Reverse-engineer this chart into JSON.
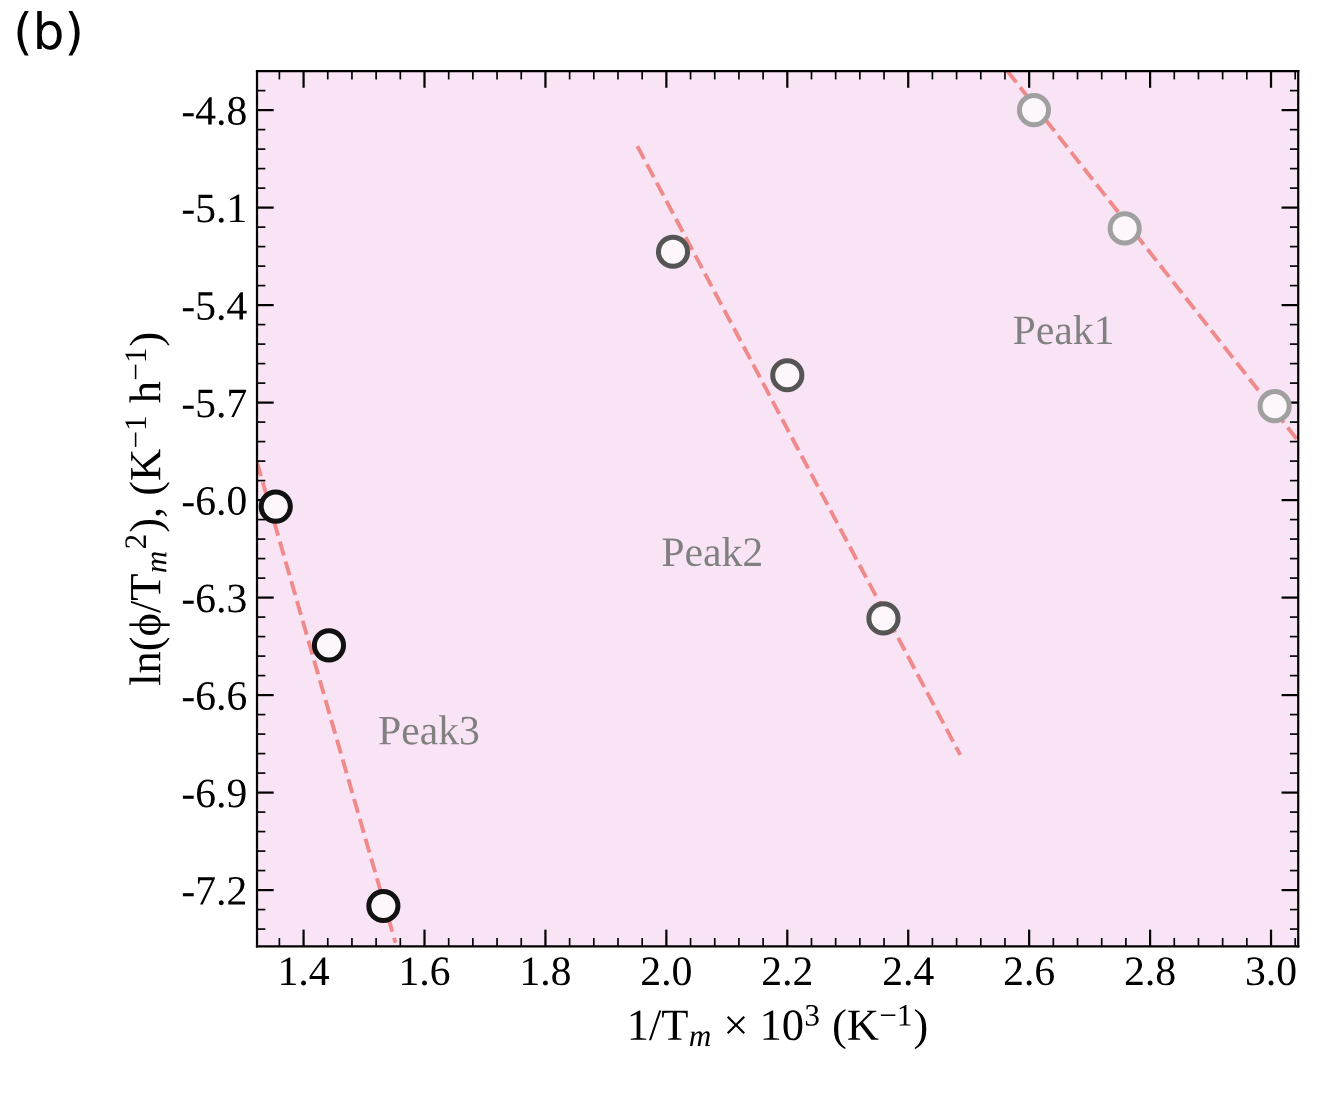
{
  "chart_data": {
    "type": "scatter",
    "title": "(b)",
    "xlabel": "1/T$_{m}$ × 10$^{3}$ (K$^{−1}$)",
    "ylabel": "ln(ϕ/T$_{m}$$^{2}$), (K$^{−1}$ h$^{−1}$)",
    "xlim": [
      1.323,
      3.045
    ],
    "ylim": [
      -7.373,
      -4.68
    ],
    "xticks": [
      1.4,
      1.6,
      1.8,
      {
        "value": 2,
        "label": "2.0"
      },
      2.2,
      2.4,
      2.6,
      2.8,
      {
        "value": 3,
        "label": "3.0"
      }
    ],
    "yticks": [
      -4.8,
      -5.1,
      -5.4,
      -5.7,
      {
        "value": -6,
        "label": "-6.0"
      },
      -6.3,
      -6.6,
      -6.9,
      -7.2
    ],
    "grid": false,
    "legend": false,
    "marker": "circle",
    "series": [
      {
        "type": "line",
        "line_style": "dashed",
        "marker": "none",
        "color": "#f08a8a",
        "x": [
          2.564,
          3.045
        ],
        "values": [
          -4.68,
          -5.818
        ]
      },
      {
        "type": "line",
        "line_style": "dashed",
        "marker": "none",
        "color": "#f08a8a",
        "x": [
          1.952,
          2.486
        ],
        "values": [
          -4.911,
          -6.784
        ]
      },
      {
        "type": "line",
        "line_style": "dashed",
        "marker": "none",
        "color": "#f08a8a",
        "x": [
          1.323,
          1.552
        ],
        "values": [
          -5.884,
          -7.362
        ]
      },
      {
        "name": "Peak1",
        "color": "#a0a0a0",
        "x": [
          2.608,
          2.758,
          3.006
        ],
        "values": [
          -4.8,
          -5.164,
          -5.711
        ]
      },
      {
        "name": "Peak2",
        "color": "#555555",
        "x": [
          2.011,
          2.2,
          2.359
        ],
        "values": [
          -5.236,
          -5.616,
          -6.364
        ]
      },
      {
        "name": "Peak3",
        "color": "#111111",
        "x": [
          1.354,
          1.442,
          1.532
        ],
        "values": [
          -6.02,
          -6.447,
          -7.249
        ]
      }
    ]
  }
}
